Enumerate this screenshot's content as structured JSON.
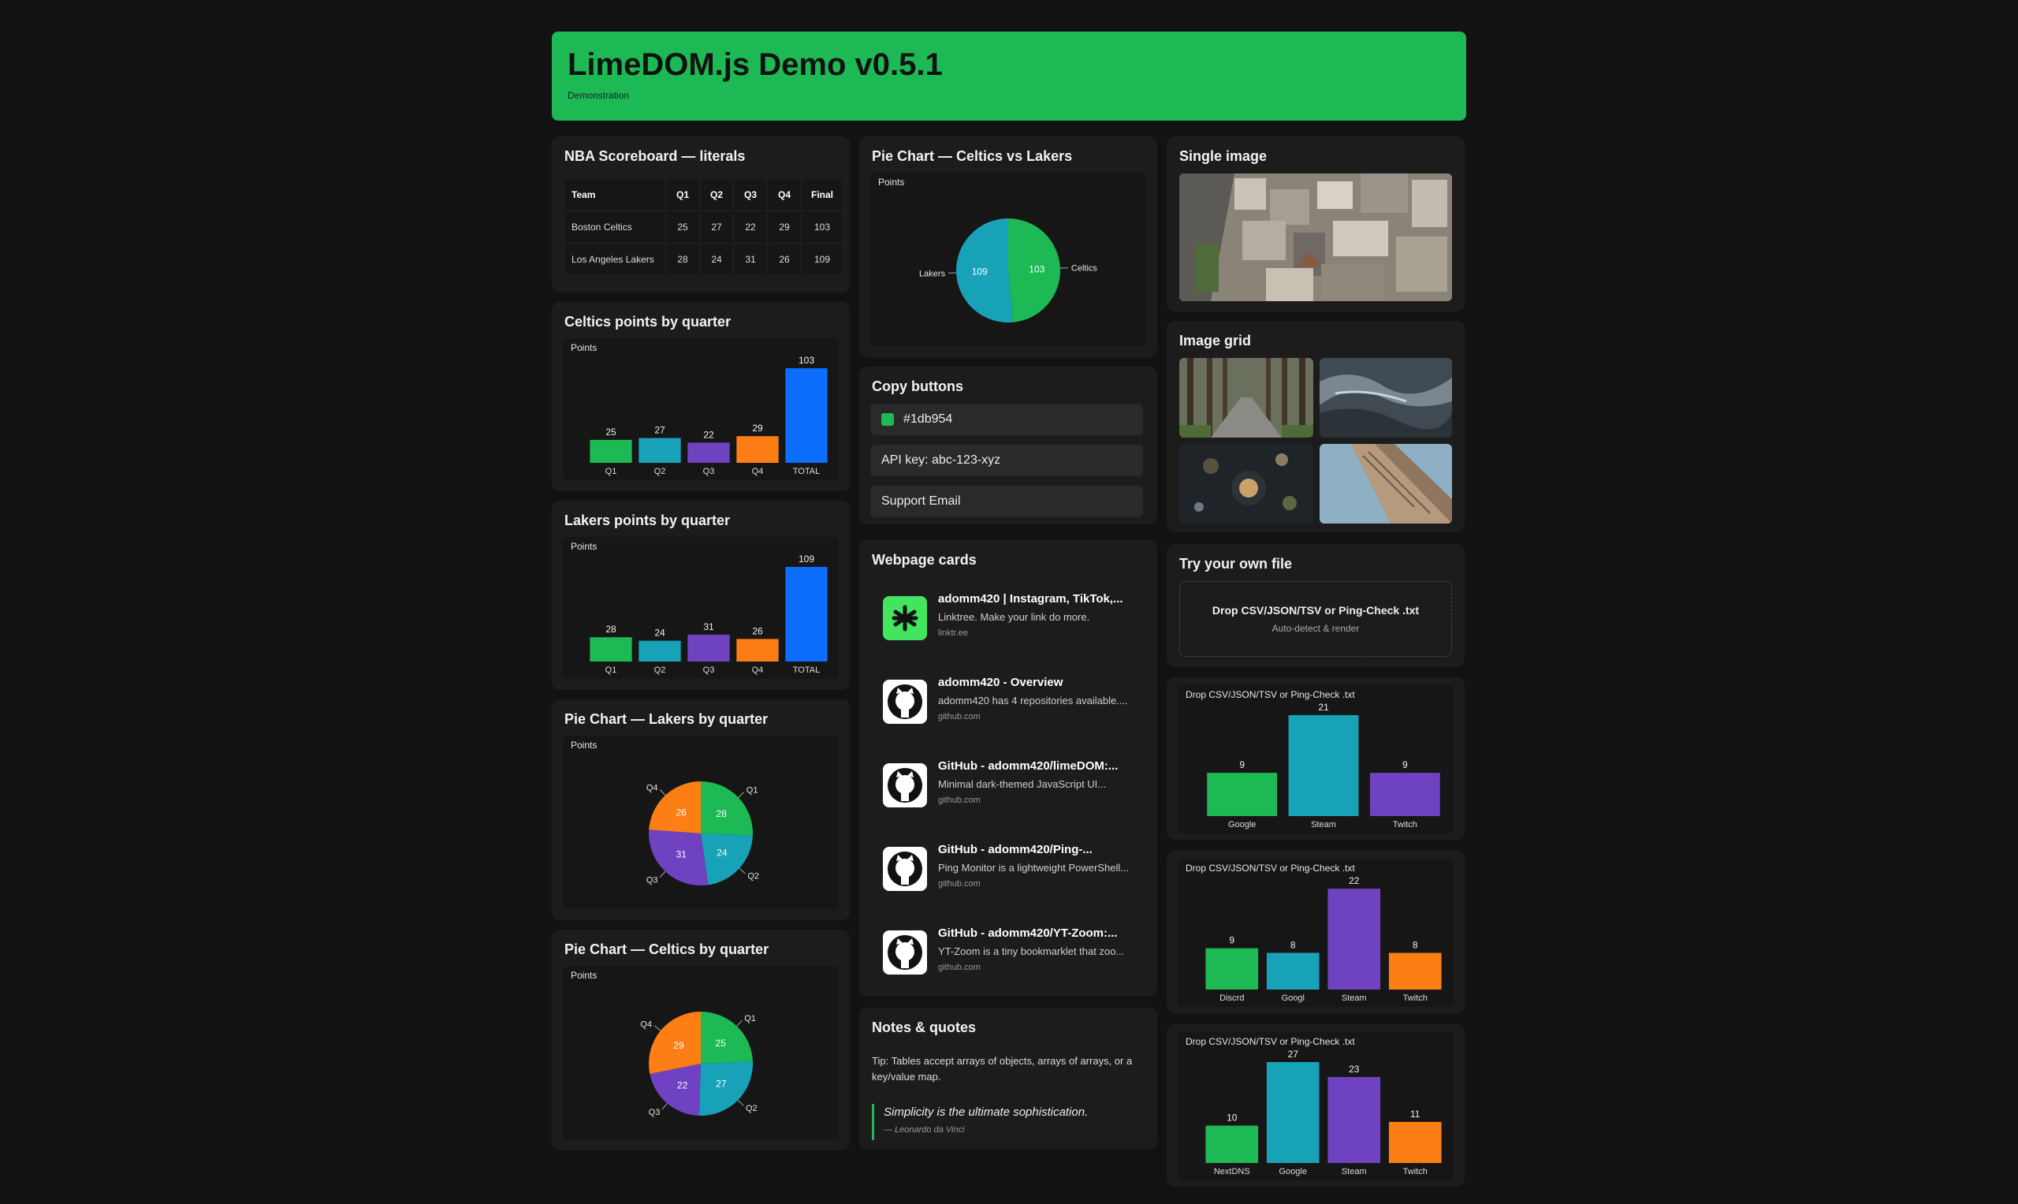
{
  "header": {
    "title": "LimeDOM.js Demo v0.5.1",
    "subtitle": "Demonstration"
  },
  "scoreboard": {
    "title": "NBA Scoreboard — literals",
    "columns": [
      "Team",
      "Q1",
      "Q2",
      "Q3",
      "Q4",
      "Final"
    ],
    "rows": [
      [
        "Boston Celtics",
        "25",
        "27",
        "22",
        "29",
        "103"
      ],
      [
        "Los Angeles Lakers",
        "28",
        "24",
        "31",
        "26",
        "109"
      ]
    ]
  },
  "colors": {
    "green": "#1db954",
    "teal": "#17a2b8",
    "purple": "#6f42c1",
    "orange": "#fd7e14",
    "blue": "#0d6efd"
  },
  "celtics_bar": {
    "title": "Celtics points by quarter"
  },
  "lakers_bar": {
    "title": "Lakers points by quarter"
  },
  "lakers_pie": {
    "title": "Pie Chart — Lakers by quarter"
  },
  "celtics_pie": {
    "title": "Pie Chart — Celtics by quarter"
  },
  "vs_pie": {
    "title": "Pie Chart — Celtics vs Lakers"
  },
  "copy": {
    "title": "Copy buttons",
    "color_label": "#1db954",
    "api_label": "API key: abc-123-xyz",
    "email_label": "Support Email"
  },
  "webcards": {
    "title": "Webpage cards",
    "items": [
      {
        "title": "adomm420 | Instagram, TikTok,...",
        "desc": "Linktree. Make your link do more.",
        "domain": "linktr.ee",
        "icon": "linktree-icon"
      },
      {
        "title": "adomm420 - Overview",
        "desc": "adomm420 has 4 repositories available....",
        "domain": "github.com",
        "icon": "github-icon"
      },
      {
        "title": "GitHub - adomm420/limeDOM:...",
        "desc": "Minimal dark-themed JavaScript UI...",
        "domain": "github.com",
        "icon": "github-icon"
      },
      {
        "title": "GitHub - adomm420/Ping-...",
        "desc": "Ping Monitor is a lightweight PowerShell...",
        "domain": "github.com",
        "icon": "github-icon"
      },
      {
        "title": "GitHub - adomm420/YT-Zoom:...",
        "desc": "YT-Zoom is a tiny bookmarklet that zoo...",
        "domain": "github.com",
        "icon": "github-icon"
      }
    ]
  },
  "notes": {
    "title": "Notes & quotes",
    "tip": "Tip: Tables accept arrays of objects, arrays of arrays, or a key/value map.",
    "quote": "Simplicity is the ultimate sophistication.",
    "author": "— Leonardo da Vinci"
  },
  "single_image": {
    "title": "Single image"
  },
  "image_grid": {
    "title": "Image grid"
  },
  "dropzone": {
    "title": "Try your own file",
    "label": "Drop CSV/JSON/TSV or Ping-Check .txt",
    "hint": "Auto-detect & render"
  },
  "chart_data": [
    {
      "id": "celtics_bar",
      "type": "bar",
      "ylabel": "Points",
      "categories": [
        "Q1",
        "Q2",
        "Q3",
        "Q4",
        "TOTAL"
      ],
      "values": [
        25,
        27,
        22,
        29,
        103
      ],
      "colors": [
        "#1db954",
        "#17a2b8",
        "#6f42c1",
        "#fd7e14",
        "#0d6efd"
      ]
    },
    {
      "id": "lakers_bar",
      "type": "bar",
      "ylabel": "Points",
      "categories": [
        "Q1",
        "Q2",
        "Q3",
        "Q4",
        "TOTAL"
      ],
      "values": [
        28,
        24,
        31,
        26,
        109
      ],
      "colors": [
        "#1db954",
        "#17a2b8",
        "#6f42c1",
        "#fd7e14",
        "#0d6efd"
      ]
    },
    {
      "id": "lakers_pie",
      "type": "pie",
      "ylabel": "Points",
      "categories": [
        "Q1",
        "Q2",
        "Q3",
        "Q4"
      ],
      "values": [
        28,
        24,
        31,
        26
      ],
      "colors": [
        "#1db954",
        "#17a2b8",
        "#6f42c1",
        "#fd7e14"
      ]
    },
    {
      "id": "celtics_pie",
      "type": "pie",
      "ylabel": "Points",
      "categories": [
        "Q1",
        "Q2",
        "Q3",
        "Q4"
      ],
      "values": [
        25,
        27,
        22,
        29
      ],
      "colors": [
        "#1db954",
        "#17a2b8",
        "#6f42c1",
        "#fd7e14"
      ]
    },
    {
      "id": "vs_pie",
      "type": "pie",
      "ylabel": "Points",
      "categories": [
        "Celtics",
        "Lakers"
      ],
      "values": [
        103,
        109
      ],
      "colors": [
        "#1db954",
        "#17a2b8"
      ]
    },
    {
      "id": "drop1",
      "type": "bar",
      "ylabel": "Drop CSV/JSON/TSV or Ping-Check .txt",
      "categories": [
        "Google",
        "Steam",
        "Twitch"
      ],
      "values": [
        9,
        21,
        9
      ],
      "colors": [
        "#1db954",
        "#17a2b8",
        "#6f42c1"
      ]
    },
    {
      "id": "drop2",
      "type": "bar",
      "ylabel": "Drop CSV/JSON/TSV or Ping-Check .txt",
      "categories": [
        "Discrd",
        "Googl",
        "Steam",
        "Twitch"
      ],
      "values": [
        9,
        8,
        22,
        8
      ],
      "colors": [
        "#1db954",
        "#17a2b8",
        "#6f42c1",
        "#fd7e14"
      ]
    },
    {
      "id": "drop3",
      "type": "bar",
      "ylabel": "Drop CSV/JSON/TSV or Ping-Check .txt",
      "categories": [
        "NextDNS",
        "Google",
        "Steam",
        "Twitch"
      ],
      "values": [
        10,
        27,
        23,
        11
      ],
      "colors": [
        "#1db954",
        "#17a2b8",
        "#6f42c1",
        "#fd7e14"
      ]
    }
  ]
}
